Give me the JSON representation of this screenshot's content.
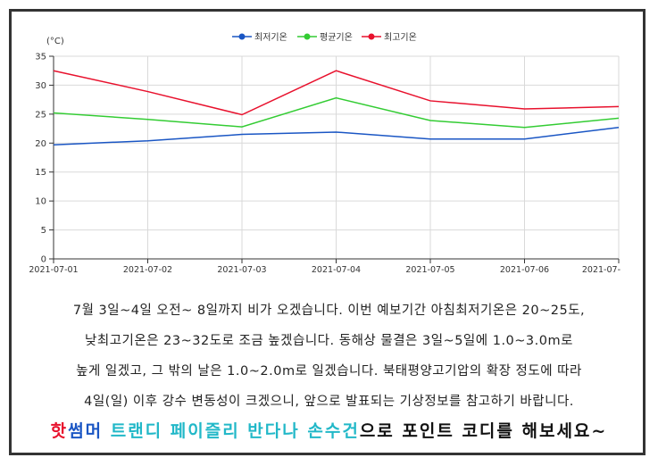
{
  "chart_data": {
    "type": "line",
    "unit_label": "(°C)",
    "categories": [
      "2021-07-01",
      "2021-07-02",
      "2021-07-03",
      "2021-07-04",
      "2021-07-05",
      "2021-07-06",
      "2021-07-"
    ],
    "ylim": [
      0,
      35
    ],
    "yticks": [
      0,
      5,
      10,
      15,
      20,
      25,
      30,
      35
    ],
    "grid": true,
    "legend_position": "top-center",
    "series": [
      {
        "name": "최저기온",
        "color": "#1a56c4",
        "values": [
          19.7,
          20.4,
          21.5,
          21.9,
          20.7,
          20.7,
          22.7
        ]
      },
      {
        "name": "평균기온",
        "color": "#33cc33",
        "values": [
          25.2,
          24.1,
          22.8,
          27.8,
          23.9,
          22.7,
          24.3
        ]
      },
      {
        "name": "최고기온",
        "color": "#e8112d",
        "values": [
          32.5,
          28.9,
          24.9,
          32.5,
          27.3,
          25.9,
          26.3
        ]
      }
    ]
  },
  "text": {
    "line1": "7월 3일~4일 오전~ 8일까지 비가 오겠습니다. 이번 예보기간 아침최저기온은 20~25도,",
    "line2": "낮최고기온은 23~32도로 조금 높겠습니다. 동해상 물결은 3일~5일에 1.0~3.0m로",
    "line3": "높게 일겠고, 그 밖의 날은 1.0~2.0m로 일겠습니다. 북태평양고기압의 확장 정도에 따라",
    "line4": "4일(일) 이후 강수 변동성이 크겠으니, 앞으로 발표되는 기상정보를 참고하기 바랍니다."
  },
  "promo": [
    {
      "text": "핫",
      "color": "#e8112d"
    },
    {
      "text": "썸",
      "color": "#1a56c4"
    },
    {
      "text": "머 ",
      "color": "#1a56c4"
    },
    {
      "text": "트랜디 페이즐리 반다나 손수건",
      "color": "#22b8c8"
    },
    {
      "text": "으로 포인트 코디를 해보세요~",
      "color": "#111111"
    }
  ]
}
